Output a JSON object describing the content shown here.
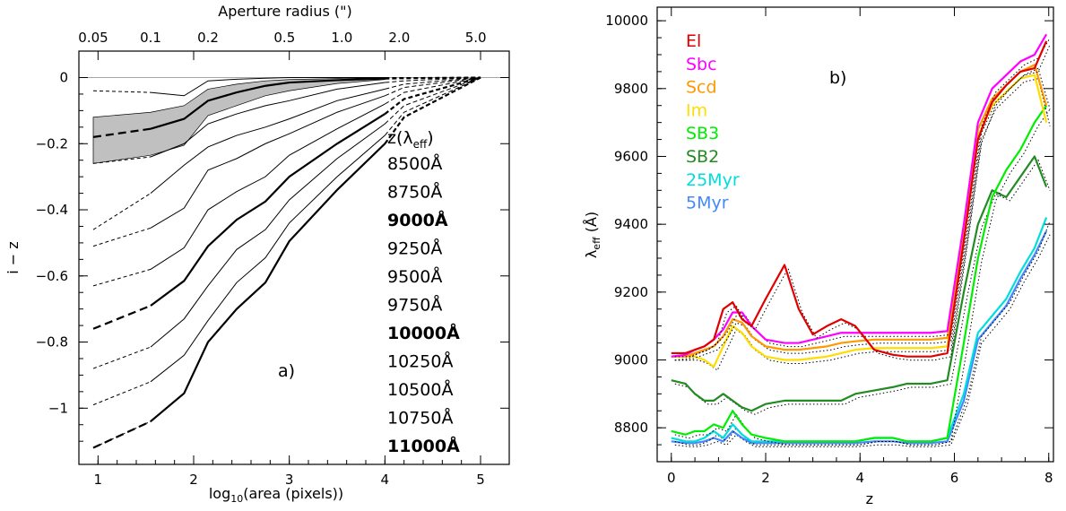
{
  "chart_data": [
    {
      "type": "line",
      "panel_label": "a)",
      "xlabel": "log",
      "xlabel_sub": "10",
      "xlabel_suffix": "(area (pixels))",
      "ylabel": "i − z",
      "top_axis_label": "Aperture radius (\")",
      "xlim": [
        0.8,
        5.3
      ],
      "ylim": [
        -1.17,
        0.08
      ],
      "x_ticks": [
        1,
        2,
        3,
        4,
        5
      ],
      "y_ticks": [
        0,
        -0.2,
        -0.4,
        -0.6,
        -0.8,
        -1
      ],
      "y_tick_labels": [
        "0",
        "−0.2",
        "−0.4",
        "−0.6",
        "−0.8",
        "−1"
      ],
      "top_ticks": [
        {
          "label": "0.05",
          "x": 0.95
        },
        {
          "label": "0.1",
          "x": 1.55
        },
        {
          "label": "0.2",
          "x": 2.15
        },
        {
          "label": "0.5",
          "x": 2.95
        },
        {
          "label": "1.0",
          "x": 3.55
        },
        {
          "label": "2.0",
          "x": 4.15
        },
        {
          "label": "5.0",
          "x": 4.95
        }
      ],
      "legend_title": "z(λ",
      "legend_title_sub": "eff",
      "legend_title_end": ")",
      "x": [
        0.95,
        1.55,
        1.9,
        2.15,
        2.45,
        2.75,
        3.0,
        3.5,
        4.0,
        4.2,
        5.0
      ],
      "series": [
        {
          "name": "8500Å",
          "bold": false,
          "values": [
            -0.04,
            -0.045,
            -0.055,
            -0.01,
            -0.005,
            -0.002,
            0.0,
            0.0,
            0.0,
            0.0,
            0.0
          ]
        },
        {
          "name": "8750Å",
          "bold": false,
          "values": [
            -0.26,
            -0.24,
            -0.2,
            -0.14,
            -0.11,
            -0.085,
            -0.07,
            -0.035,
            -0.015,
            -0.01,
            0.0
          ]
        },
        {
          "name": "9000Å",
          "bold": true,
          "values": [
            -0.18,
            -0.155,
            -0.125,
            -0.07,
            -0.045,
            -0.025,
            -0.015,
            -0.008,
            -0.003,
            -0.002,
            0.0
          ]
        },
        {
          "name": "9250Å",
          "bold": false,
          "values": [
            -0.46,
            -0.35,
            -0.265,
            -0.21,
            -0.175,
            -0.15,
            -0.125,
            -0.07,
            -0.035,
            -0.02,
            0.0
          ]
        },
        {
          "name": "9500Å",
          "bold": false,
          "values": [
            -0.51,
            -0.455,
            -0.395,
            -0.28,
            -0.245,
            -0.2,
            -0.17,
            -0.105,
            -0.055,
            -0.03,
            0.0
          ]
        },
        {
          "name": "9750Å",
          "bold": false,
          "values": [
            -0.63,
            -0.58,
            -0.515,
            -0.4,
            -0.345,
            -0.3,
            -0.235,
            -0.155,
            -0.08,
            -0.045,
            0.0
          ]
        },
        {
          "name": "10000Å",
          "bold": true,
          "values": [
            -0.76,
            -0.69,
            -0.615,
            -0.51,
            -0.43,
            -0.375,
            -0.3,
            -0.2,
            -0.11,
            -0.065,
            0.0
          ]
        },
        {
          "name": "10250Å",
          "bold": false,
          "values": [
            -0.88,
            -0.815,
            -0.73,
            -0.63,
            -0.52,
            -0.46,
            -0.37,
            -0.245,
            -0.14,
            -0.085,
            0.0
          ]
        },
        {
          "name": "10500Å",
          "bold": false,
          "values": [
            -0.99,
            -0.92,
            -0.84,
            -0.735,
            -0.62,
            -0.545,
            -0.44,
            -0.3,
            -0.175,
            -0.105,
            0.0
          ]
        },
        {
          "name": "10750Å",
          "bold": false,
          "values": [
            -1.12,
            -1.04,
            -0.955,
            -0.8,
            -0.7,
            -0.62,
            -0.495,
            -0.34,
            -0.2,
            -0.12,
            0.0
          ]
        },
        {
          "name": "11000Å",
          "bold": true,
          "values": [
            -1.12,
            -1.04,
            -0.955,
            -0.8,
            -0.7,
            -0.62,
            -0.495,
            -0.34,
            -0.2,
            -0.12,
            0.0
          ]
        }
      ],
      "band": {
        "x": [
          0.95,
          1.55,
          1.9,
          2.15,
          2.45,
          2.75,
          3.0,
          3.5,
          4.0
        ],
        "upper": [
          -0.12,
          -0.105,
          -0.085,
          -0.035,
          -0.02,
          -0.01,
          -0.006,
          -0.003,
          -0.001
        ],
        "lower": [
          -0.26,
          -0.235,
          -0.205,
          -0.115,
          -0.085,
          -0.055,
          -0.04,
          -0.018,
          -0.006
        ]
      }
    },
    {
      "type": "line",
      "panel_label": "b)",
      "xlabel": "z",
      "ylabel": "λ",
      "ylabel_sub": "eff",
      "ylabel_suffix": "(Å)",
      "xlim": [
        -0.3,
        8.1
      ],
      "ylim": [
        8700,
        10040
      ],
      "x_ticks": [
        0,
        2,
        4,
        6,
        8
      ],
      "y_ticks": [
        8800,
        9000,
        9200,
        9400,
        9600,
        9800,
        10000
      ],
      "x": [
        0,
        0.3,
        0.5,
        0.7,
        0.9,
        1.1,
        1.3,
        1.5,
        1.7,
        2.0,
        2.4,
        2.7,
        3.0,
        3.3,
        3.6,
        3.9,
        4.3,
        4.7,
        5.0,
        5.5,
        5.85,
        6.2,
        6.5,
        6.8,
        7.1,
        7.4,
        7.7,
        7.95
      ],
      "series": [
        {
          "name": "El",
          "color": "#e00000",
          "values": [
            9020,
            9020,
            9030,
            9040,
            9060,
            9150,
            9170,
            9120,
            9100,
            9180,
            9280,
            9150,
            9075,
            9100,
            9120,
            9100,
            9030,
            9015,
            9010,
            9010,
            9020,
            9350,
            9650,
            9760,
            9810,
            9850,
            9860,
            9940
          ]
        },
        {
          "name": "Sbc",
          "color": "#ff00ff",
          "values": [
            9010,
            9015,
            9030,
            9040,
            9060,
            9090,
            9140,
            9140,
            9100,
            9060,
            9050,
            9050,
            9060,
            9070,
            9080,
            9080,
            9080,
            9080,
            9080,
            9080,
            9085,
            9400,
            9700,
            9800,
            9840,
            9880,
            9900,
            9960
          ]
        },
        {
          "name": "Scd",
          "color": "#ff9900",
          "values": [
            9010,
            9010,
            9020,
            9030,
            9040,
            9070,
            9120,
            9110,
            9070,
            9040,
            9030,
            9030,
            9035,
            9040,
            9050,
            9055,
            9060,
            9060,
            9060,
            9060,
            9065,
            9380,
            9680,
            9770,
            9810,
            9850,
            9870,
            9750
          ]
        },
        {
          "name": "Im",
          "color": "#ffdd00",
          "values": [
            9010,
            9010,
            9010,
            9000,
            8980,
            9040,
            9100,
            9080,
            9040,
            9010,
            9000,
            9000,
            9005,
            9010,
            9020,
            9030,
            9035,
            9035,
            9035,
            9035,
            9040,
            9360,
            9660,
            9750,
            9790,
            9830,
            9840,
            9700
          ]
        },
        {
          "name": "SB3",
          "color": "#00ee00",
          "values": [
            8790,
            8780,
            8790,
            8790,
            8810,
            8800,
            8850,
            8810,
            8780,
            8770,
            8760,
            8760,
            8760,
            8760,
            8760,
            8760,
            8770,
            8770,
            8760,
            8760,
            8770,
            9050,
            9300,
            9480,
            9560,
            9620,
            9700,
            9750
          ]
        },
        {
          "name": "SB2",
          "color": "#228b22",
          "values": [
            8940,
            8930,
            8900,
            8880,
            8880,
            8900,
            8880,
            8860,
            8850,
            8870,
            8880,
            8880,
            8880,
            8880,
            8880,
            8900,
            8910,
            8920,
            8930,
            8930,
            8940,
            9200,
            9400,
            9500,
            9480,
            9540,
            9600,
            9510
          ]
        },
        {
          "name": "25Myr",
          "color": "#00dddd",
          "values": [
            8770,
            8760,
            8760,
            8770,
            8790,
            8770,
            8810,
            8780,
            8760,
            8760,
            8760,
            8760,
            8760,
            8760,
            8760,
            8760,
            8770,
            8770,
            8760,
            8760,
            8770,
            8900,
            9080,
            9130,
            9180,
            9260,
            9330,
            9420
          ]
        },
        {
          "name": "5Myr",
          "color": "#4488ff",
          "values": [
            8760,
            8755,
            8755,
            8760,
            8770,
            8760,
            8790,
            8770,
            8755,
            8755,
            8755,
            8755,
            8755,
            8755,
            8755,
            8755,
            8760,
            8760,
            8755,
            8755,
            8760,
            8880,
            9060,
            9110,
            9160,
            9240,
            9310,
            9380
          ]
        }
      ]
    }
  ]
}
